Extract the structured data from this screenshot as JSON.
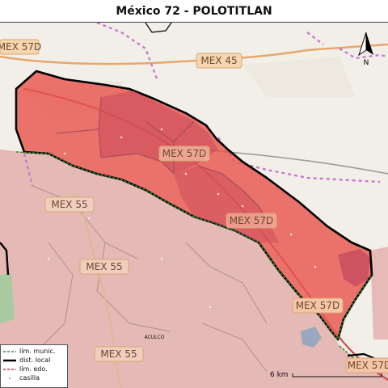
{
  "title": "México 72 - POLOTITLAN",
  "roads": {
    "mex57d_nw": "MEX 57D",
    "mex45": "MEX 45",
    "mex57d_center": "MEX 57D",
    "mex55_upper": "MEX 55",
    "mex57d_mid": "MEX 57D",
    "mex55_mid": "MEX 55",
    "mex57d_lower": "MEX 57D",
    "mex55_lower": "MEX 55",
    "mex57d_se": "MEX 57D"
  },
  "place_label": "ACULCO",
  "north_label": "N",
  "scale_label": "6 km",
  "legend": {
    "items": [
      {
        "label": "lím. munic.",
        "color": "#2e8b2e",
        "style": "dashed"
      },
      {
        "label": "dist. local",
        "color": "#000000",
        "style": "solid"
      },
      {
        "label": "lím. edo.",
        "color": "#cc3333",
        "style": "dashed"
      },
      {
        "label": "casilla",
        "color": "#aaaaaa",
        "style": "dot"
      }
    ]
  },
  "colors": {
    "district_fill": "#e8574f",
    "district_dark": "#d14a52",
    "outside_fill": "#e4b4b0",
    "base_map": "#f2efe9",
    "highway": "#e8a76b"
  }
}
